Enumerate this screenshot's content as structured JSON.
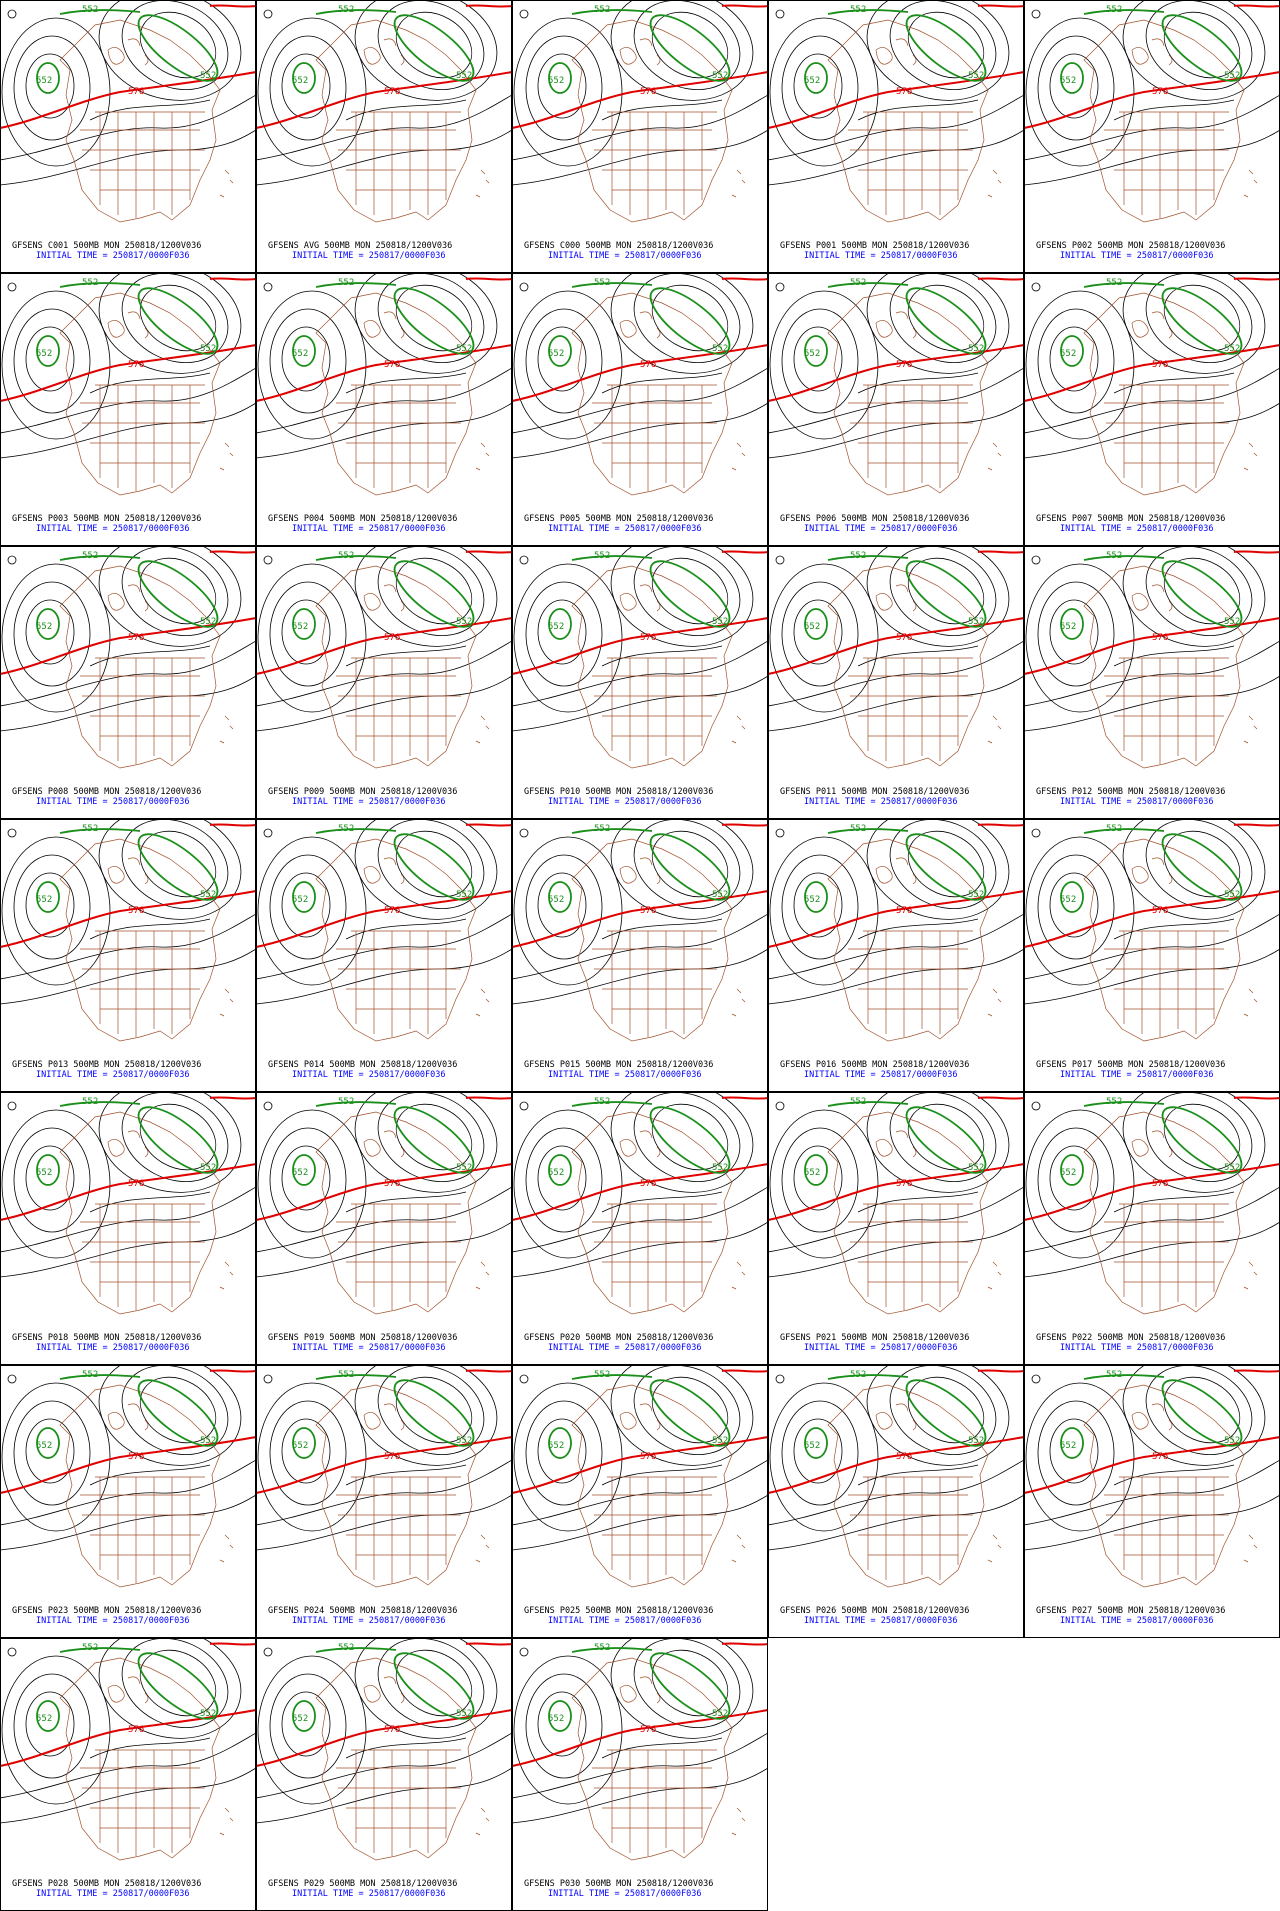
{
  "contour_labels": [
    "552",
    "576"
  ],
  "panels": [
    {
      "title": "GFSENS C001 500MB MON 250818/1200V036",
      "init": "INITIAL TIME = 250817/0000F036"
    },
    {
      "title": "GFSENS AVG 500MB MON 250818/1200V036",
      "init": "INITIAL TIME = 250817/0000F036"
    },
    {
      "title": "GFSENS C000 500MB MON 250818/1200V036",
      "init": "INITIAL TIME = 250817/0000F036"
    },
    {
      "title": "GFSENS P001 500MB MON 250818/1200V036",
      "init": "INITIAL TIME = 250817/0000F036"
    },
    {
      "title": "GFSENS P002 500MB MON 250818/1200V036",
      "init": "INITIAL TIME = 250817/0000F036"
    },
    {
      "title": "GFSENS P003 500MB MON 250818/1200V036",
      "init": "INITIAL TIME = 250817/0000F036"
    },
    {
      "title": "GFSENS P004 500MB MON 250818/1200V036",
      "init": "INITIAL TIME = 250817/0000F036"
    },
    {
      "title": "GFSENS P005 500MB MON 250818/1200V036",
      "init": "INITIAL TIME = 250817/0000F036"
    },
    {
      "title": "GFSENS P006 500MB MON 250818/1200V036",
      "init": "INITIAL TIME = 250817/0000F036"
    },
    {
      "title": "GFSENS P007 500MB MON 250818/1200V036",
      "init": "INITIAL TIME = 250817/0000F036"
    },
    {
      "title": "GFSENS P008 500MB MON 250818/1200V036",
      "init": "INITIAL TIME = 250817/0000F036"
    },
    {
      "title": "GFSENS P009 500MB MON 250818/1200V036",
      "init": "INITIAL TIME = 250817/0000F036"
    },
    {
      "title": "GFSENS P010 500MB MON 250818/1200V036",
      "init": "INITIAL TIME = 250817/0000F036"
    },
    {
      "title": "GFSENS P011 500MB MON 250818/1200V036",
      "init": "INITIAL TIME = 250817/0000F036"
    },
    {
      "title": "GFSENS P012 500MB MON 250818/1200V036",
      "init": "INITIAL TIME = 250817/0000F036"
    },
    {
      "title": "GFSENS P013 500MB MON 250818/1200V036",
      "init": "INITIAL TIME = 250817/0000F036"
    },
    {
      "title": "GFSENS P014 500MB MON 250818/1200V036",
      "init": "INITIAL TIME = 250817/0000F036"
    },
    {
      "title": "GFSENS P015 500MB MON 250818/1200V036",
      "init": "INITIAL TIME = 250817/0000F036"
    },
    {
      "title": "GFSENS P016 500MB MON 250818/1200V036",
      "init": "INITIAL TIME = 250817/0000F036"
    },
    {
      "title": "GFSENS P017 500MB MON 250818/1200V036",
      "init": "INITIAL TIME = 250817/0000F036"
    },
    {
      "title": "GFSENS P018 500MB MON 250818/1200V036",
      "init": "INITIAL TIME = 250817/0000F036"
    },
    {
      "title": "GFSENS P019 500MB MON 250818/1200V036",
      "init": "INITIAL TIME = 250817/0000F036"
    },
    {
      "title": "GFSENS P020 500MB MON 250818/1200V036",
      "init": "INITIAL TIME = 250817/0000F036"
    },
    {
      "title": "GFSENS P021 500MB MON 250818/1200V036",
      "init": "INITIAL TIME = 250817/0000F036"
    },
    {
      "title": "GFSENS P022 500MB MON 250818/1200V036",
      "init": "INITIAL TIME = 250817/0000F036"
    },
    {
      "title": "GFSENS P023 500MB MON 250818/1200V036",
      "init": "INITIAL TIME = 250817/0000F036"
    },
    {
      "title": "GFSENS P024 500MB MON 250818/1200V036",
      "init": "INITIAL TIME = 250817/0000F036"
    },
    {
      "title": "GFSENS P025 500MB MON 250818/1200V036",
      "init": "INITIAL TIME = 250817/0000F036"
    },
    {
      "title": "GFSENS P026 500MB MON 250818/1200V036",
      "init": "INITIAL TIME = 250817/0000F036"
    },
    {
      "title": "GFSENS P027 500MB MON 250818/1200V036",
      "init": "INITIAL TIME = 250817/0000F036"
    },
    {
      "title": "GFSENS P028 500MB MON 250818/1200V036",
      "init": "INITIAL TIME = 250817/0000F036"
    },
    {
      "title": "GFSENS P029 500MB MON 250818/1200V036",
      "init": "INITIAL TIME = 250817/0000F036"
    },
    {
      "title": "GFSENS P030 500MB MON 250818/1200V036",
      "init": "INITIAL TIME = 250817/0000F036"
    }
  ]
}
